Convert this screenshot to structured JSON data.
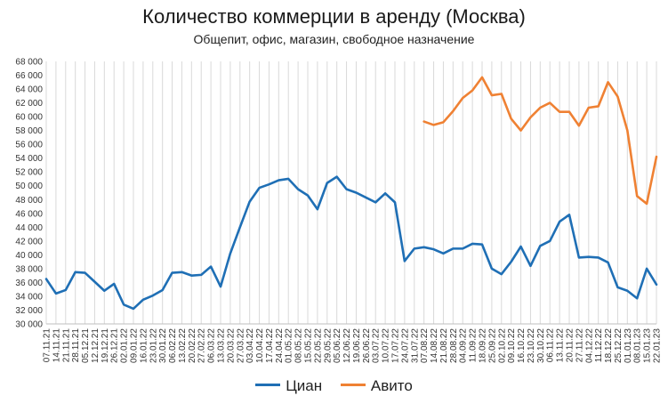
{
  "chart_data": {
    "type": "line",
    "title": "Количество коммерции в аренду (Москва)",
    "subtitle": "Общепит, офис, магазин, свободное назначение",
    "ylim": [
      30000,
      68000
    ],
    "yticks": [
      "30 000",
      "32 000",
      "34 000",
      "36 000",
      "38 000",
      "40 000",
      "42 000",
      "44 000",
      "46 000",
      "48 000",
      "50 000",
      "52 000",
      "54 000",
      "56 000",
      "58 000",
      "60 000",
      "62 000",
      "64 000",
      "66 000",
      "68 000"
    ],
    "grid": "vertical",
    "legend": "bottom",
    "categories": [
      "07.11.21",
      "14.11.21",
      "21.11.21",
      "28.11.21",
      "05.12.21",
      "12.12.21",
      "19.12.21",
      "26.12.21",
      "02.01.22",
      "09.01.22",
      "16.01.22",
      "23.01.22",
      "30.01.22",
      "06.02.22",
      "13.02.22",
      "20.02.22",
      "27.02.22",
      "06.03.22",
      "13.03.22",
      "20.03.22",
      "27.03.22",
      "03.04.22",
      "10.04.22",
      "17.04.22",
      "24.04.22",
      "01.05.22",
      "08.05.22",
      "15.05.22",
      "22.05.22",
      "29.05.22",
      "05.06.22",
      "12.06.22",
      "19.06.22",
      "26.06.22",
      "03.07.22",
      "10.07.22",
      "17.07.22",
      "24.07.22",
      "31.07.22",
      "07.08.22",
      "14.08.22",
      "21.08.22",
      "28.08.22",
      "04.09.22",
      "11.09.22",
      "18.09.22",
      "25.09.22",
      "02.10.22",
      "09.10.22",
      "16.10.22",
      "23.10.22",
      "30.10.22",
      "06.11.22",
      "13.11.22",
      "20.11.22",
      "27.11.22",
      "04.12.22",
      "11.12.22",
      "18.12.22",
      "25.12.22",
      "01.01.23",
      "08.01.23",
      "15.01.23",
      "22.01.23"
    ],
    "series": [
      {
        "name": "Циан",
        "color": "#1f6fb5",
        "values": [
          36500,
          34400,
          34900,
          37500,
          37400,
          36100,
          34800,
          35800,
          32800,
          32200,
          33500,
          34100,
          34900,
          37400,
          37500,
          37000,
          37100,
          38300,
          35400,
          40200,
          44000,
          47700,
          49700,
          50200,
          50800,
          51000,
          49500,
          48600,
          46600,
          50400,
          51300,
          49500,
          49000,
          48300,
          47600,
          48900,
          47600,
          39100,
          40900,
          41100,
          40800,
          40200,
          40900,
          40900,
          41600,
          41500,
          38000,
          37200,
          39000,
          41200,
          38400,
          41300,
          42000,
          44800,
          45800,
          39600,
          39700,
          39600,
          38900,
          35300,
          34800,
          33700,
          38000,
          35700
        ]
      },
      {
        "name": "Авито",
        "color": "#ef8133",
        "values": [
          null,
          null,
          null,
          null,
          null,
          null,
          null,
          null,
          null,
          null,
          null,
          null,
          null,
          null,
          null,
          null,
          null,
          null,
          null,
          null,
          null,
          null,
          null,
          null,
          null,
          null,
          null,
          null,
          null,
          null,
          null,
          null,
          null,
          null,
          null,
          null,
          null,
          null,
          null,
          59300,
          58800,
          59200,
          60800,
          62700,
          63800,
          65700,
          63100,
          63300,
          59700,
          58000,
          59900,
          61300,
          62000,
          60700,
          60700,
          58700,
          61300,
          61500,
          65000,
          62900,
          58000,
          48500,
          47400,
          54200
        ]
      }
    ]
  }
}
